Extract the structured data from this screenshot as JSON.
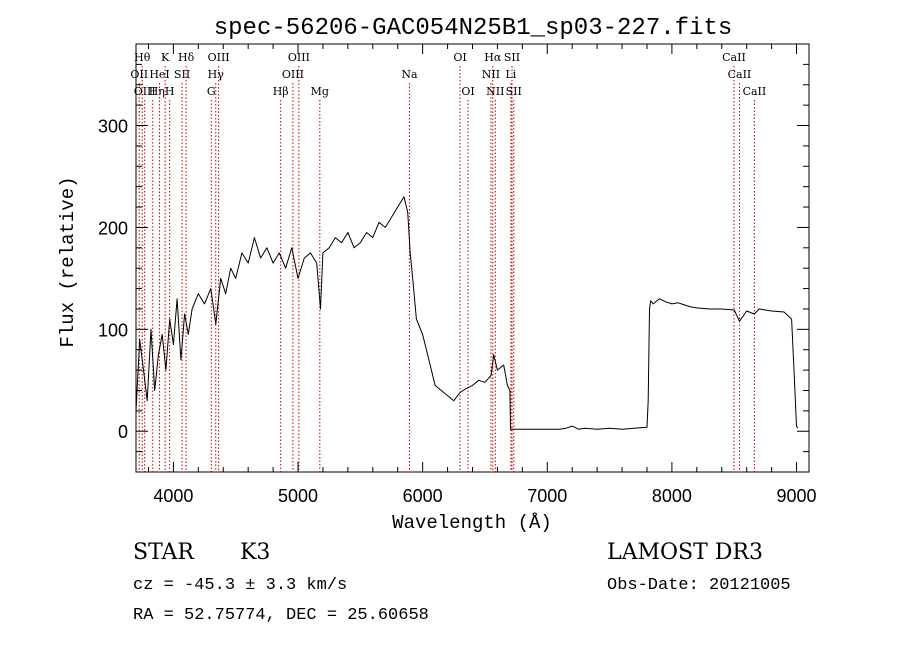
{
  "chart_data": {
    "type": "line",
    "title": "spec-56206-GAC054N25B1_sp03-227.fits",
    "xlabel": "Wavelength (Å)",
    "ylabel": "Flux (relative)",
    "xlim": [
      3700,
      9100
    ],
    "ylim": [
      -40,
      380
    ],
    "x_ticks": [
      4000,
      5000,
      6000,
      7000,
      8000,
      9000
    ],
    "x_tick_labels": [
      "4000",
      "5000",
      "6000",
      "7000",
      "8000",
      "9000"
    ],
    "y_ticks": [
      0,
      100,
      200,
      300
    ],
    "y_tick_labels": [
      "0",
      "100",
      "200",
      "300"
    ],
    "grid": false,
    "line_color": "#000000",
    "marker_color": "#c00000",
    "spectrum": {
      "x": [
        3700,
        3730,
        3760,
        3790,
        3820,
        3850,
        3880,
        3910,
        3940,
        3970,
        4000,
        4030,
        4060,
        4090,
        4120,
        4150,
        4200,
        4250,
        4300,
        4340,
        4380,
        4420,
        4460,
        4500,
        4550,
        4600,
        4650,
        4700,
        4750,
        4800,
        4850,
        4900,
        4950,
        5000,
        5050,
        5100,
        5150,
        5180,
        5200,
        5250,
        5300,
        5350,
        5400,
        5450,
        5500,
        5550,
        5600,
        5650,
        5700,
        5750,
        5800,
        5850,
        5880,
        5900,
        5920,
        5950,
        6000,
        6050,
        6100,
        6150,
        6200,
        6250,
        6300,
        6350,
        6400,
        6450,
        6500,
        6550,
        6570,
        6600,
        6650,
        6680,
        6700,
        6705,
        6720,
        6800,
        6900,
        7000,
        7100,
        7150,
        7200,
        7250,
        7300,
        7400,
        7500,
        7600,
        7700,
        7800,
        7810,
        7820,
        7830,
        7850,
        7900,
        7950,
        8000,
        8050,
        8100,
        8150,
        8200,
        8300,
        8400,
        8500,
        8542,
        8600,
        8662,
        8700,
        8800,
        8900,
        8960,
        8980,
        9000,
        9010
      ],
      "y": [
        20,
        90,
        60,
        30,
        100,
        40,
        75,
        95,
        60,
        110,
        85,
        130,
        70,
        115,
        95,
        120,
        135,
        125,
        140,
        105,
        150,
        135,
        160,
        150,
        175,
        165,
        190,
        170,
        180,
        165,
        175,
        160,
        180,
        150,
        170,
        175,
        165,
        120,
        175,
        180,
        190,
        185,
        195,
        180,
        185,
        195,
        190,
        205,
        200,
        210,
        220,
        230,
        215,
        175,
        150,
        110,
        95,
        70,
        45,
        40,
        35,
        30,
        38,
        42,
        45,
        50,
        48,
        55,
        75,
        60,
        65,
        45,
        40,
        2,
        2,
        2,
        2,
        2,
        2,
        3,
        5,
        2,
        3,
        2,
        3,
        2,
        3,
        4,
        30,
        120,
        128,
        125,
        130,
        127,
        125,
        126,
        124,
        122,
        121,
        120,
        120,
        119,
        108,
        118,
        115,
        120,
        118,
        117,
        110,
        60,
        5,
        3
      ]
    },
    "line_markers": [
      {
        "x": 3726,
        "label": "OII",
        "row": 2,
        "dx": 0
      },
      {
        "x": 3750,
        "label": "Hθ",
        "row": 1,
        "dx": 0
      },
      {
        "x": 3770,
        "label": "OIII",
        "row": 3,
        "dx": 0
      },
      {
        "x": 3835,
        "label": "Hη",
        "row": 3,
        "dx": 4
      },
      {
        "x": 3889,
        "label": "HeI",
        "row": 2,
        "dx": 0
      },
      {
        "x": 3934,
        "label": "K",
        "row": 1,
        "dx": 0
      },
      {
        "x": 3970,
        "label": "H",
        "row": 3,
        "dx": 0
      },
      {
        "x": 4070,
        "label": "SII",
        "row": 2,
        "dx": 0
      },
      {
        "x": 4102,
        "label": "Hδ",
        "row": 1,
        "dx": 0
      },
      {
        "x": 4304,
        "label": "G",
        "row": 3,
        "dx": 0
      },
      {
        "x": 4340,
        "label": "Hγ",
        "row": 2,
        "dx": 0
      },
      {
        "x": 4363,
        "label": "OIII",
        "row": 1,
        "dx": 0
      },
      {
        "x": 4861,
        "label": "Hβ",
        "row": 3,
        "dx": 0
      },
      {
        "x": 4959,
        "label": "OIII",
        "row": 2,
        "dx": 0
      },
      {
        "x": 5007,
        "label": "OIII",
        "row": 1,
        "dx": 0
      },
      {
        "x": 5175,
        "label": "Mg",
        "row": 3,
        "dx": 0
      },
      {
        "x": 5894,
        "label": "Na",
        "row": 2,
        "dx": 0
      },
      {
        "x": 6300,
        "label": "OI",
        "row": 1,
        "dx": 0
      },
      {
        "x": 6364,
        "label": "OI",
        "row": 3,
        "dx": 0
      },
      {
        "x": 6548,
        "label": "NII",
        "row": 2,
        "dx": 0
      },
      {
        "x": 6563,
        "label": "Hα",
        "row": 1,
        "dx": 0
      },
      {
        "x": 6583,
        "label": "NII",
        "row": 3,
        "dx": 0
      },
      {
        "x": 6708,
        "label": "Li",
        "row": 2,
        "dx": 0
      },
      {
        "x": 6717,
        "label": "SII",
        "row": 1,
        "dx": 0
      },
      {
        "x": 6731,
        "label": "SII",
        "row": 3,
        "dx": 0
      },
      {
        "x": 8498,
        "label": "CaII",
        "row": 1,
        "dx": 0
      },
      {
        "x": 8542,
        "label": "CaII",
        "row": 2,
        "dx": 0
      },
      {
        "x": 8662,
        "label": "CaII",
        "row": 3,
        "dx": 0
      }
    ]
  },
  "info": {
    "object_class": "STAR",
    "subclass": "K3",
    "redshift": "cz = -45.3 ± 3.3 km/s",
    "coords": "RA =  52.75774, DEC =  25.60658",
    "survey": "LAMOST DR3",
    "obs_date": "Obs-Date: 20121005"
  }
}
